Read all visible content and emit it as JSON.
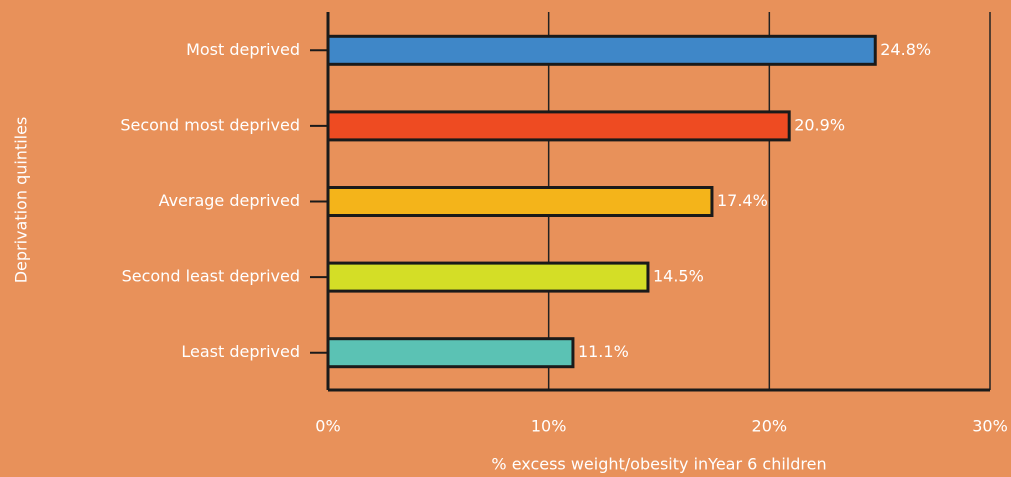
{
  "chart_data": {
    "type": "barh",
    "categories": [
      "Most deprived",
      "Second most deprived",
      "Average deprived",
      "Second least deprived",
      "Least deprived"
    ],
    "values": [
      24.8,
      20.9,
      17.4,
      14.5,
      11.1
    ],
    "value_labels": [
      "24.8%",
      "20.9%",
      "17.4%",
      "14.5%",
      "11.1%"
    ],
    "colors": [
      "#3f87c8",
      "#ee4b22",
      "#f4b41a",
      "#d4de26",
      "#5bc2b4"
    ],
    "xlim": [
      0,
      30
    ],
    "xticks": [
      {
        "value": 0,
        "label": "0%"
      },
      {
        "value": 10,
        "label": "10%"
      },
      {
        "value": 20,
        "label": "20%"
      },
      {
        "value": 30,
        "label": "30%"
      }
    ],
    "x_label": "% excess weight/obesity inYear 6 children",
    "y_label": "Deprivation quintiles",
    "grid": true
  }
}
